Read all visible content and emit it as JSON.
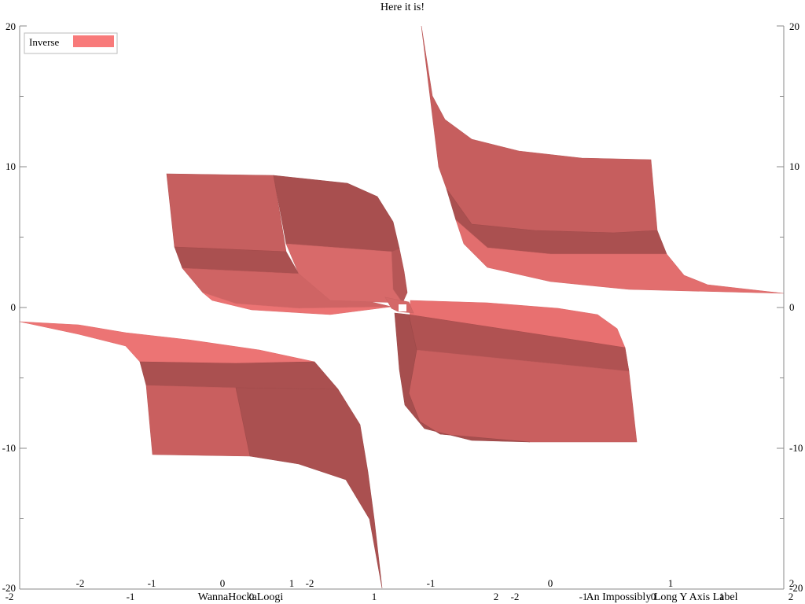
{
  "chart_data": {
    "type": "surface",
    "title": "Here it is!",
    "function": "Inverse",
    "xlabel": "WannaHockaLoogi",
    "ylabel": "An Impossibly Long Y Axis Label",
    "zlabel": "",
    "legend": {
      "label": "Inverse",
      "color": "#f87a7a",
      "position": "top-left"
    },
    "x_range": [
      -2,
      2
    ],
    "y_range": [
      -2,
      2
    ],
    "z_range": [
      -20,
      20
    ],
    "x_ticks": [
      "-2",
      "-1",
      "0",
      "1",
      "2"
    ],
    "y_ticks": [
      "-2",
      "-1",
      "0",
      "1",
      "2"
    ],
    "z_ticks": [
      "-20",
      "-10",
      "0",
      "10",
      "20"
    ],
    "surface_color": "#f87a7a"
  }
}
